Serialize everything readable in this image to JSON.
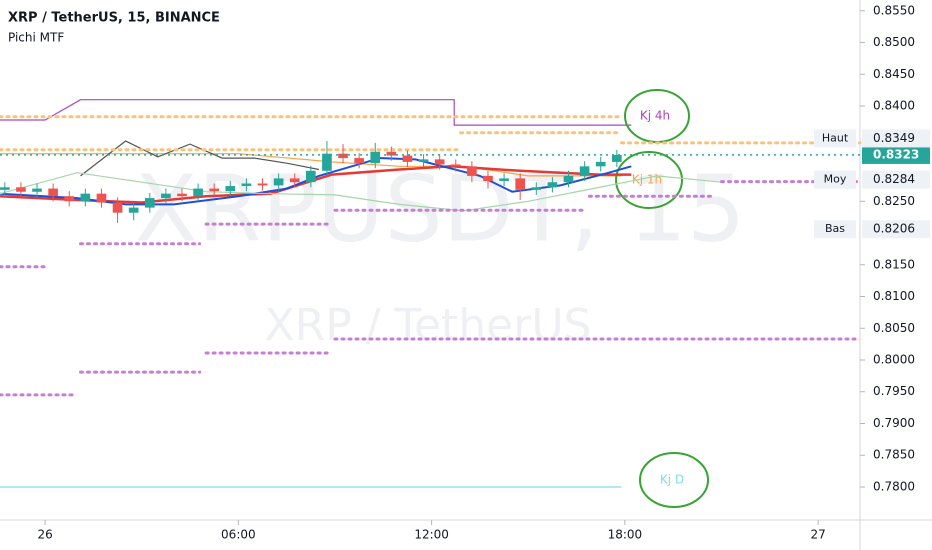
{
  "chart_data": {
    "type": "candlestick",
    "title": "XRP / TetherUS, 15, BINANCE",
    "subtitle": "Pichi MTF",
    "watermark": "XRPUSDT, 15",
    "watermark_sub": "XRP / TetherUS",
    "xlim": [
      -1.4,
      25.3
    ],
    "ylim": [
      0.7748,
      0.8567
    ],
    "xticks": [
      {
        "value": 0,
        "label": "26"
      },
      {
        "value": 6,
        "label": "06:00"
      },
      {
        "value": 12,
        "label": "12:00"
      },
      {
        "value": 18,
        "label": "18:00"
      },
      {
        "value": 24,
        "label": "27"
      }
    ],
    "yticks": [
      {
        "value": 0.855,
        "label": "0.8550"
      },
      {
        "value": 0.85,
        "label": "0.8500"
      },
      {
        "value": 0.845,
        "label": "0.8450"
      },
      {
        "value": 0.84,
        "label": "0.8400"
      },
      {
        "value": 0.825,
        "label": "0.8250"
      },
      {
        "value": 0.815,
        "label": "0.8150"
      },
      {
        "value": 0.81,
        "label": "0.8100"
      },
      {
        "value": 0.805,
        "label": "0.8050"
      },
      {
        "value": 0.8,
        "label": "0.8000"
      },
      {
        "value": 0.795,
        "label": "0.7950"
      },
      {
        "value": 0.79,
        "label": "0.7900"
      },
      {
        "value": 0.785,
        "label": "0.7850"
      },
      {
        "value": 0.78,
        "label": "0.7800"
      }
    ],
    "up_color": "#26a69a",
    "down_color": "#ef5350",
    "x": [
      -1.25,
      -0.75,
      -0.25,
      0.25,
      0.75,
      1.25,
      1.75,
      2.25,
      2.75,
      3.25,
      3.75,
      4.25,
      4.75,
      5.25,
      5.75,
      6.25,
      6.75,
      7.25,
      7.75,
      8.25,
      8.75,
      9.25,
      9.75,
      10.25,
      10.75,
      11.25,
      11.75,
      12.25,
      12.75,
      13.25,
      13.75,
      14.25,
      14.75,
      15.25,
      15.75,
      16.25,
      16.75,
      17.25,
      17.75
    ],
    "open": [
      0.8268,
      0.8272,
      0.8265,
      0.827,
      0.8258,
      0.825,
      0.8262,
      0.8248,
      0.8232,
      0.824,
      0.8255,
      0.8262,
      0.8258,
      0.827,
      0.8266,
      0.8274,
      0.8278,
      0.8275,
      0.8286,
      0.828,
      0.8298,
      0.8325,
      0.8318,
      0.831,
      0.8328,
      0.8322,
      0.8312,
      0.8316,
      0.8308,
      0.8305,
      0.829,
      0.8282,
      0.8286,
      0.8268,
      0.8272,
      0.828,
      0.829,
      0.8305,
      0.8312
    ],
    "high": [
      0.828,
      0.828,
      0.8278,
      0.8278,
      0.8266,
      0.827,
      0.827,
      0.8256,
      0.8248,
      0.8263,
      0.827,
      0.827,
      0.8278,
      0.8278,
      0.8282,
      0.8286,
      0.8286,
      0.8294,
      0.8294,
      0.8306,
      0.8345,
      0.834,
      0.8326,
      0.8342,
      0.8336,
      0.833,
      0.8324,
      0.8324,
      0.8316,
      0.8313,
      0.8298,
      0.8294,
      0.8294,
      0.828,
      0.8288,
      0.8298,
      0.8313,
      0.832,
      0.8331
    ],
    "low": [
      0.826,
      0.8257,
      0.8257,
      0.825,
      0.8242,
      0.8242,
      0.824,
      0.8216,
      0.822,
      0.8232,
      0.8247,
      0.825,
      0.825,
      0.8258,
      0.8258,
      0.8266,
      0.8267,
      0.8267,
      0.8272,
      0.8272,
      0.829,
      0.831,
      0.8302,
      0.8302,
      0.8314,
      0.8304,
      0.8304,
      0.83,
      0.8297,
      0.828,
      0.827,
      0.8274,
      0.8252,
      0.826,
      0.8264,
      0.8272,
      0.8282,
      0.8297,
      0.8304
    ],
    "close": [
      0.8272,
      0.8265,
      0.827,
      0.8258,
      0.825,
      0.8262,
      0.8248,
      0.8232,
      0.824,
      0.8255,
      0.8262,
      0.8258,
      0.827,
      0.8266,
      0.8274,
      0.8278,
      0.8275,
      0.8286,
      0.828,
      0.8298,
      0.8325,
      0.8318,
      0.831,
      0.8328,
      0.8322,
      0.8312,
      0.8316,
      0.8308,
      0.8305,
      0.829,
      0.8282,
      0.8286,
      0.8268,
      0.8272,
      0.828,
      0.829,
      0.8305,
      0.8312,
      0.8323
    ],
    "last_price": 0.8323,
    "price_labels": [
      {
        "label": "Haut",
        "value": 0.8349
      },
      {
        "label": "Moy",
        "value": 0.8284
      },
      {
        "label": "Bas",
        "value": 0.8206
      }
    ],
    "series": [
      {
        "name": "Kj 4h",
        "color": "#ab47bc",
        "x": [
          -1.4,
          0,
          1.1,
          12.7,
          12.7,
          18.2
        ],
        "values": [
          0.8378,
          0.8378,
          0.841,
          0.841,
          0.837,
          0.837
        ]
      },
      {
        "name": "Kj 1h",
        "color": "#f7a54a",
        "x": [
          -1.4,
          3,
          6,
          8.9,
          11,
          13,
          15,
          17.9
        ],
        "values": [
          0.8325,
          0.8325,
          0.8325,
          0.8312,
          0.8305,
          0.8305,
          0.829,
          0.829
        ]
      },
      {
        "name": "Kj D",
        "color": "#80deea",
        "x": [
          -1.4,
          17.9
        ],
        "values": [
          0.78,
          0.78
        ]
      },
      {
        "color": "#e53935",
        "x": [
          -1.4,
          1,
          3,
          5,
          7,
          8.9,
          11,
          12.6,
          14.75,
          17.2,
          18.2
        ],
        "values": [
          0.8258,
          0.8252,
          0.8248,
          0.8258,
          0.8262,
          0.8292,
          0.83,
          0.8305,
          0.8298,
          0.8292,
          0.8292
        ]
      },
      {
        "color": "#1e4fd8",
        "x": [
          -1.4,
          1,
          2.5,
          4,
          6,
          7.5,
          8.5,
          10.4,
          11.5,
          13.5,
          14.5,
          16,
          17.5,
          18.2
        ],
        "values": [
          0.8262,
          0.8255,
          0.8245,
          0.8245,
          0.8258,
          0.827,
          0.829,
          0.8318,
          0.8316,
          0.829,
          0.8265,
          0.8275,
          0.8295,
          0.8305
        ]
      },
      {
        "color": "#555555",
        "x": [
          1.1,
          2.5,
          3.5,
          4.5,
          5.5,
          6.5,
          7.5,
          8.5
        ],
        "values": [
          0.829,
          0.8345,
          0.832,
          0.834,
          0.8318,
          0.8318,
          0.831,
          0.83
        ]
      },
      {
        "color": "#a5d6a7",
        "x": [
          -1.4,
          1,
          3,
          5,
          7,
          9,
          11,
          13,
          15,
          17,
          19,
          21
        ],
        "values": [
          0.8262,
          0.8295,
          0.828,
          0.8265,
          0.8262,
          0.826,
          0.8245,
          0.8235,
          0.825,
          0.827,
          0.829,
          0.828
        ]
      },
      {
        "color": "#c77dd8",
        "dotted": true,
        "x": [
          -1.4,
          0
        ],
        "values": [
          0.8147,
          0.8147
        ]
      },
      {
        "color": "#c77dd8",
        "dotted": true,
        "x": [
          1.1,
          4.8
        ],
        "values": [
          0.8183,
          0.8183
        ]
      },
      {
        "color": "#c77dd8",
        "dotted": true,
        "x": [
          5,
          8.85
        ],
        "values": [
          0.8214,
          0.8214
        ]
      },
      {
        "color": "#c77dd8",
        "dotted": true,
        "x": [
          9,
          16.8
        ],
        "values": [
          0.8236,
          0.8236
        ]
      },
      {
        "color": "#c77dd8",
        "dotted": true,
        "x": [
          16.9,
          20.8
        ],
        "values": [
          0.8258,
          0.8258
        ]
      },
      {
        "color": "#c77dd8",
        "dotted": true,
        "x": [
          21,
          25.3
        ],
        "values": [
          0.8281,
          0.8281
        ]
      },
      {
        "color": "#c77dd8",
        "dotted": true,
        "x": [
          9,
          25.3
        ],
        "values": [
          0.8033,
          0.8033
        ]
      },
      {
        "color": "#c77dd8",
        "dotted": true,
        "x": [
          5,
          8.85
        ],
        "values": [
          0.8011,
          0.8011
        ]
      },
      {
        "color": "#c77dd8",
        "dotted": true,
        "x": [
          1.1,
          4.8
        ],
        "values": [
          0.7981,
          0.7981
        ]
      },
      {
        "color": "#c77dd8",
        "dotted": true,
        "x": [
          -1.4,
          0.9
        ],
        "values": [
          0.7945,
          0.7945
        ]
      },
      {
        "color": "#f9c27a",
        "dotted": true,
        "x": [
          -1.4,
          17.9
        ],
        "values": [
          0.8383,
          0.8383
        ]
      },
      {
        "color": "#f9c27a",
        "dotted": true,
        "x": [
          12.9,
          17.9
        ],
        "values": [
          0.8358,
          0.8358
        ]
      },
      {
        "color": "#f9c27a",
        "dotted": true,
        "x": [
          17.9,
          25.3
        ],
        "values": [
          0.8342,
          0.8342
        ]
      },
      {
        "color": "#f9c27a",
        "dotted": true,
        "x": [
          -1.4,
          12.8
        ],
        "values": [
          0.8331,
          0.8331
        ]
      }
    ]
  }
}
